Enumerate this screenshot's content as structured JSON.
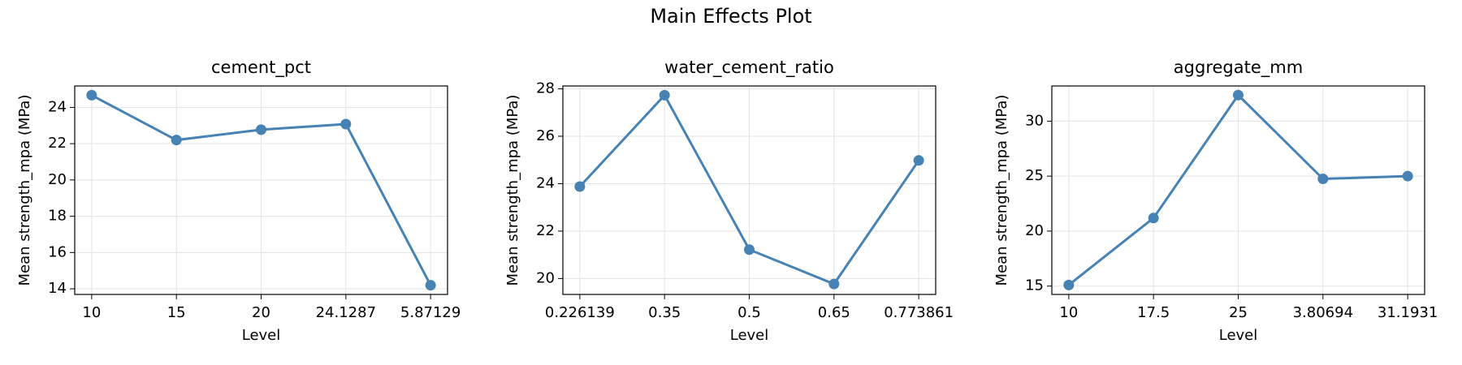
{
  "title": "Main Effects Plot",
  "chart_data": [
    {
      "type": "line",
      "title": "cement_pct",
      "x_label": "Level",
      "y_label": "Mean strength_mpa (MPa)",
      "categories": [
        "10",
        "15",
        "20",
        "24.1287",
        "5.87129"
      ],
      "values": [
        24.67,
        22.2,
        22.77,
        23.08,
        14.2
      ],
      "color": "#4682b4",
      "ylim": [
        13.69,
        25.18
      ],
      "yticks": [
        14,
        16,
        18,
        20,
        22,
        24
      ],
      "grid": true
    },
    {
      "type": "line",
      "title": "water_cement_ratio",
      "x_label": "Level",
      "y_label": "Mean strength_mpa (MPa)",
      "categories": [
        "0.226139",
        "0.35",
        "0.5",
        "0.65",
        "0.773861"
      ],
      "values": [
        23.88,
        27.73,
        21.22,
        19.77,
        24.98
      ],
      "color": "#4682b4",
      "ylim": [
        19.33,
        28.12
      ],
      "yticks": [
        20,
        22,
        24,
        26,
        28
      ],
      "grid": true
    },
    {
      "type": "line",
      "title": "aggregate_mm",
      "x_label": "Level",
      "y_label": "Mean strength_mpa (MPa)",
      "categories": [
        "10",
        "17.5",
        "25",
        "3.80694",
        "31.1931"
      ],
      "values": [
        15.1,
        21.19,
        32.37,
        24.75,
        25.0
      ],
      "color": "#4682b4",
      "ylim": [
        14.24,
        33.2
      ],
      "yticks": [
        15,
        20,
        25,
        30
      ],
      "grid": true
    }
  ]
}
